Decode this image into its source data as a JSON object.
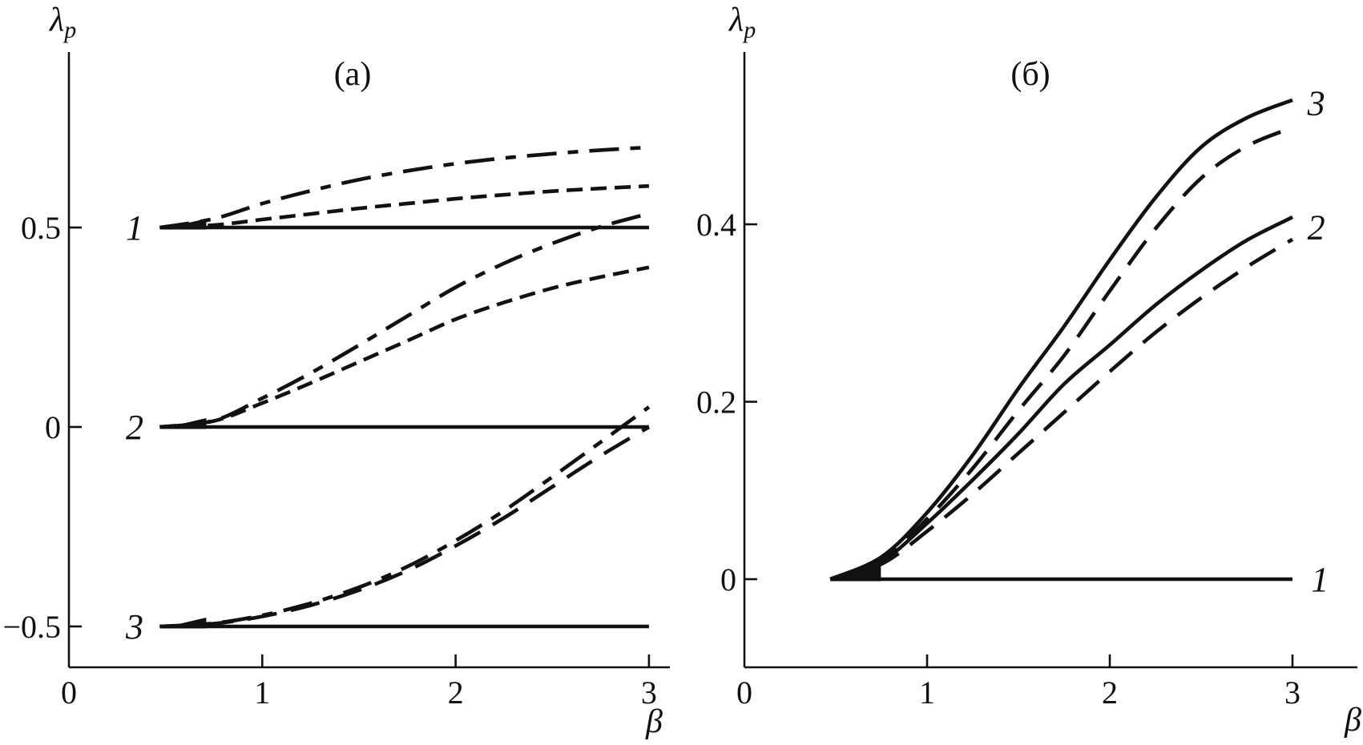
{
  "figure": {
    "background": "#ffffff",
    "ink_color": "#111111"
  },
  "chart_data": [
    {
      "type": "line",
      "panel": "a",
      "title": "(a)",
      "xlabel": "β",
      "ylabel": "λp",
      "ylabel_parts": {
        "main": "λ",
        "sub": "p"
      },
      "xlim": [
        0,
        3.1
      ],
      "ylim": [
        -0.6,
        0.94
      ],
      "grid": false,
      "legend": "none",
      "origin_label": "0",
      "xticks": [
        {
          "v": 1,
          "label": "1"
        },
        {
          "v": 2,
          "label": "2"
        },
        {
          "v": 3,
          "label": "3"
        }
      ],
      "yticks": [
        {
          "v": 0.5,
          "label": "0.5"
        },
        {
          "v": 0,
          "label": "0"
        },
        {
          "v": -0.5,
          "label": "−0.5"
        }
      ],
      "x": [
        0.47,
        0.75,
        1.0,
        1.25,
        1.5,
        1.75,
        2.0,
        2.25,
        2.5,
        2.75,
        3.0
      ],
      "series": [
        {
          "name": "branch-1-solid",
          "curve": "1",
          "style": "solid",
          "y": [
            0.5,
            0.5,
            0.5,
            0.5,
            0.5,
            0.5,
            0.5,
            0.5,
            0.5,
            0.5,
            0.5
          ]
        },
        {
          "name": "branch-2-solid",
          "curve": "2",
          "style": "solid",
          "y": [
            0,
            0,
            0,
            0,
            0,
            0,
            0,
            0,
            0,
            0,
            0
          ]
        },
        {
          "name": "branch-3-solid",
          "curve": "3",
          "style": "solid",
          "y": [
            -0.5,
            -0.5,
            -0.5,
            -0.5,
            -0.5,
            -0.5,
            -0.5,
            -0.5,
            -0.5,
            -0.5,
            -0.5
          ]
        },
        {
          "name": "branch-1-short-dash",
          "curve": "1",
          "style": "short-dash",
          "y": [
            0.5,
            0.506,
            0.52,
            0.534,
            0.548,
            0.56,
            0.572,
            0.582,
            0.591,
            0.598,
            0.604
          ]
        },
        {
          "name": "branch-1-dash-dot",
          "curve": "1",
          "style": "dash-dot",
          "y": [
            0.5,
            0.522,
            0.56,
            0.592,
            0.62,
            0.642,
            0.66,
            0.674,
            0.685,
            0.694,
            0.701
          ]
        },
        {
          "name": "branch-2-short-dash",
          "curve": "2",
          "style": "short-dash",
          "y": [
            0,
            0.015,
            0.06,
            0.11,
            0.163,
            0.216,
            0.27,
            0.312,
            0.348,
            0.376,
            0.4
          ]
        },
        {
          "name": "branch-2-dash-dot",
          "curve": "2",
          "style": "dash-dot",
          "y": [
            0,
            0.016,
            0.072,
            0.135,
            0.205,
            0.278,
            0.35,
            0.41,
            0.46,
            0.502,
            0.535
          ]
        },
        {
          "name": "branch-3-long-dash",
          "curve": "3",
          "style": "long-dash",
          "y": [
            -0.5,
            -0.493,
            -0.475,
            -0.447,
            -0.409,
            -0.36,
            -0.298,
            -0.228,
            -0.15,
            -0.072,
            0.0
          ]
        },
        {
          "name": "branch-3-dash-dot",
          "curve": "3",
          "style": "dash-dot",
          "y": [
            -0.5,
            -0.492,
            -0.472,
            -0.442,
            -0.402,
            -0.35,
            -0.285,
            -0.21,
            -0.125,
            -0.038,
            0.05
          ]
        }
      ],
      "curve_labels": [
        {
          "text": "1",
          "x": 0.34,
          "y": 0.5
        },
        {
          "text": "2",
          "x": 0.34,
          "y": 0.0
        },
        {
          "text": "3",
          "x": 0.34,
          "y": -0.5
        }
      ]
    },
    {
      "type": "line",
      "panel": "b",
      "title": "(б)",
      "xlabel": "β",
      "ylabel": "λp",
      "ylabel_parts": {
        "main": "λ",
        "sub": "p"
      },
      "xlim": [
        0,
        3.35
      ],
      "ylim": [
        -0.1,
        0.594
      ],
      "grid": false,
      "legend": "none",
      "origin_label": "0",
      "xticks": [
        {
          "v": 1,
          "label": "1"
        },
        {
          "v": 2,
          "label": "2"
        },
        {
          "v": 3,
          "label": "3"
        }
      ],
      "yticks": [
        {
          "v": 0,
          "label": "0"
        },
        {
          "v": 0.2,
          "label": "0.2"
        },
        {
          "v": 0.4,
          "label": "0.4"
        }
      ],
      "x": [
        0.47,
        0.75,
        1.0,
        1.25,
        1.5,
        1.75,
        2.0,
        2.25,
        2.5,
        2.75,
        3.0
      ],
      "series": [
        {
          "name": "branch-1-solid",
          "curve": "1",
          "style": "solid",
          "y": [
            0,
            0,
            0,
            0,
            0,
            0,
            0,
            0,
            0,
            0,
            0
          ]
        },
        {
          "name": "branch-2-long-dash",
          "curve": "2",
          "style": "long-dash",
          "y": [
            0,
            0.017,
            0.054,
            0.096,
            0.142,
            0.188,
            0.234,
            0.278,
            0.317,
            0.352,
            0.383
          ]
        },
        {
          "name": "branch-2-solid",
          "curve": "2",
          "style": "solid",
          "y": [
            0,
            0.02,
            0.063,
            0.112,
            0.164,
            0.22,
            0.264,
            0.309,
            0.348,
            0.382,
            0.408
          ]
        },
        {
          "name": "branch-3-long-dash",
          "curve": "3",
          "style": "long-dash",
          "y": [
            0,
            0.022,
            0.068,
            0.125,
            0.19,
            0.252,
            0.325,
            0.395,
            0.452,
            0.488,
            0.509
          ]
        },
        {
          "name": "branch-3-solid",
          "curve": "3",
          "style": "solid",
          "y": [
            0,
            0.025,
            0.075,
            0.14,
            0.215,
            0.285,
            0.36,
            0.43,
            0.487,
            0.52,
            0.54
          ]
        }
      ],
      "curve_labels": [
        {
          "text": "3",
          "x": 3.13,
          "y": 0.537
        },
        {
          "text": "2",
          "x": 3.13,
          "y": 0.397
        },
        {
          "text": "1",
          "x": 3.15,
          "y": 0.0
        }
      ]
    }
  ]
}
